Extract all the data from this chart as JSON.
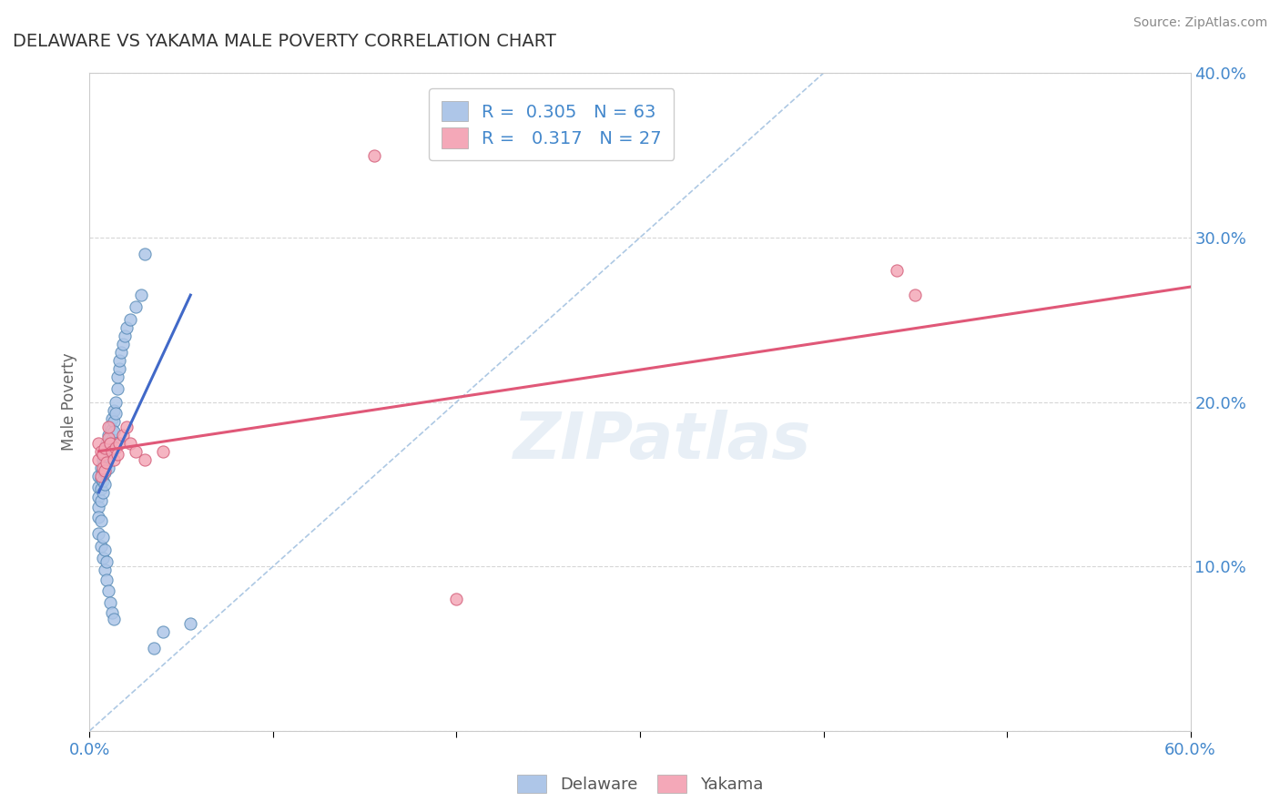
{
  "title": "DELAWARE VS YAKAMA MALE POVERTY CORRELATION CHART",
  "source": "Source: ZipAtlas.com",
  "ylabel": "Male Poverty",
  "xlim": [
    0.0,
    0.6
  ],
  "ylim": [
    0.0,
    0.4
  ],
  "xticks": [
    0.0,
    0.1,
    0.2,
    0.3,
    0.4,
    0.5,
    0.6
  ],
  "yticks": [
    0.0,
    0.1,
    0.2,
    0.3,
    0.4
  ],
  "delaware_R": 0.305,
  "delaware_N": 63,
  "yakama_R": 0.317,
  "yakama_N": 27,
  "delaware_color": "#AEC6E8",
  "yakama_color": "#F4A8B8",
  "delaware_edge_color": "#5B8DB8",
  "yakama_edge_color": "#D45F7A",
  "delaware_line_color": "#4169C8",
  "yakama_line_color": "#E05878",
  "reference_line_color": "#99BBDD",
  "watermark": "ZIPatlas",
  "background_color": "#FFFFFF",
  "grid_color": "#CCCCCC",
  "title_color": "#333333",
  "tick_color": "#4488CC",
  "delaware_x": [
    0.005,
    0.005,
    0.005,
    0.005,
    0.005,
    0.006,
    0.006,
    0.006,
    0.006,
    0.007,
    0.007,
    0.007,
    0.007,
    0.008,
    0.008,
    0.008,
    0.008,
    0.009,
    0.009,
    0.009,
    0.01,
    0.01,
    0.01,
    0.01,
    0.011,
    0.011,
    0.011,
    0.012,
    0.012,
    0.012,
    0.013,
    0.013,
    0.013,
    0.014,
    0.014,
    0.015,
    0.015,
    0.016,
    0.016,
    0.017,
    0.018,
    0.019,
    0.02,
    0.022,
    0.025,
    0.028,
    0.03,
    0.035,
    0.04,
    0.055,
    0.005,
    0.006,
    0.007,
    0.008,
    0.009,
    0.01,
    0.011,
    0.012,
    0.013,
    0.006,
    0.007,
    0.008,
    0.009
  ],
  "delaware_y": [
    0.155,
    0.148,
    0.142,
    0.136,
    0.13,
    0.16,
    0.153,
    0.147,
    0.14,
    0.165,
    0.158,
    0.152,
    0.145,
    0.17,
    0.163,
    0.157,
    0.15,
    0.175,
    0.168,
    0.162,
    0.18,
    0.173,
    0.167,
    0.16,
    0.185,
    0.178,
    0.172,
    0.19,
    0.183,
    0.177,
    0.195,
    0.188,
    0.182,
    0.2,
    0.193,
    0.208,
    0.215,
    0.22,
    0.225,
    0.23,
    0.235,
    0.24,
    0.245,
    0.25,
    0.258,
    0.265,
    0.29,
    0.05,
    0.06,
    0.065,
    0.12,
    0.112,
    0.105,
    0.098,
    0.092,
    0.085,
    0.078,
    0.072,
    0.068,
    0.128,
    0.118,
    0.11,
    0.103
  ],
  "yakama_x": [
    0.005,
    0.005,
    0.006,
    0.006,
    0.007,
    0.007,
    0.008,
    0.008,
    0.009,
    0.01,
    0.01,
    0.011,
    0.012,
    0.013,
    0.014,
    0.015,
    0.016,
    0.018,
    0.02,
    0.022,
    0.025,
    0.03,
    0.04,
    0.2,
    0.44,
    0.45,
    0.155
  ],
  "yakama_y": [
    0.165,
    0.175,
    0.155,
    0.17,
    0.16,
    0.168,
    0.158,
    0.172,
    0.163,
    0.178,
    0.185,
    0.175,
    0.17,
    0.165,
    0.172,
    0.168,
    0.175,
    0.18,
    0.185,
    0.175,
    0.17,
    0.165,
    0.17,
    0.08,
    0.28,
    0.265,
    0.35
  ],
  "del_line_x": [
    0.005,
    0.055
  ],
  "del_line_y": [
    0.145,
    0.265
  ],
  "yak_line_x": [
    0.005,
    0.6
  ],
  "yak_line_y": [
    0.17,
    0.27
  ]
}
